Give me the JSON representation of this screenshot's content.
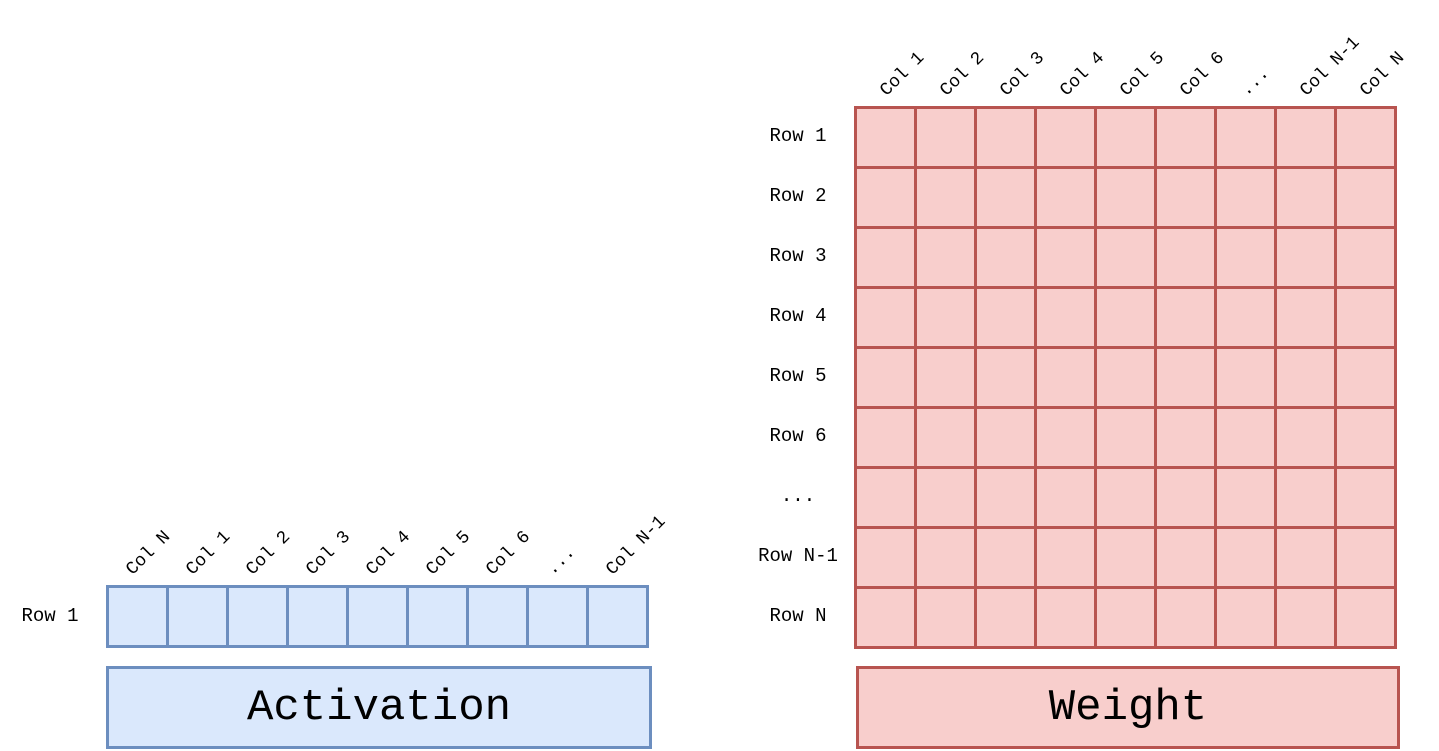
{
  "activation": {
    "title": "Activation",
    "row_label": "Row 1",
    "col_labels": [
      "Col N",
      "Col 1",
      "Col 2",
      "Col 3",
      "Col 4",
      "Col 5",
      "Col 6",
      "...",
      "Col N-1"
    ],
    "fill": "#dae8fc",
    "stroke": "#6c8ebf"
  },
  "weight": {
    "title": "Weight",
    "row_labels": [
      "Row 1",
      "Row 2",
      "Row 3",
      "Row 4",
      "Row 5",
      "Row 6",
      "...",
      "Row N-1",
      "Row N"
    ],
    "col_labels": [
      "Col 1",
      "Col 2",
      "Col 3",
      "Col 4",
      "Col 5",
      "Col 6",
      "...",
      "Col N-1",
      "Col N"
    ],
    "fill": "#f8cecc",
    "stroke": "#b85450"
  }
}
